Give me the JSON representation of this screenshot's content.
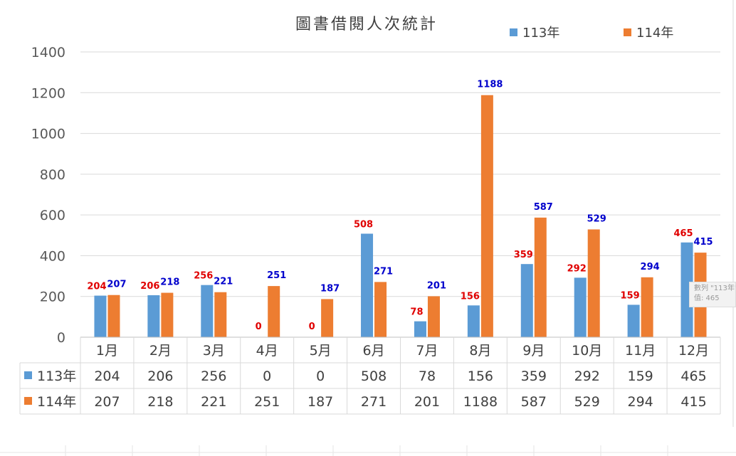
{
  "chart_data": {
    "type": "bar",
    "title": "圖書借閱人次統計",
    "categories": [
      "1月",
      "2月",
      "3月",
      "4月",
      "5月",
      "6月",
      "7月",
      "8月",
      "9月",
      "10月",
      "11月",
      "12月"
    ],
    "series": [
      {
        "name": "113年",
        "color": "#5b9bd5",
        "label_color": "#e00000",
        "values": [
          204,
          206,
          256,
          0,
          0,
          508,
          78,
          156,
          359,
          292,
          159,
          465
        ]
      },
      {
        "name": "114年",
        "color": "#ed7d31",
        "label_color": "#0000cc",
        "values": [
          207,
          218,
          221,
          251,
          187,
          271,
          201,
          1188,
          587,
          529,
          294,
          415
        ]
      }
    ],
    "yticks": [
      0,
      200,
      400,
      600,
      800,
      1000,
      1200,
      1400
    ],
    "ylim": [
      0,
      1400
    ],
    "xlabel": "",
    "ylabel": "",
    "grid": true,
    "legend": "top-right",
    "data_table": true
  },
  "tooltip": {
    "line1": "數列 \"113年\"",
    "line2": "值: 465"
  }
}
